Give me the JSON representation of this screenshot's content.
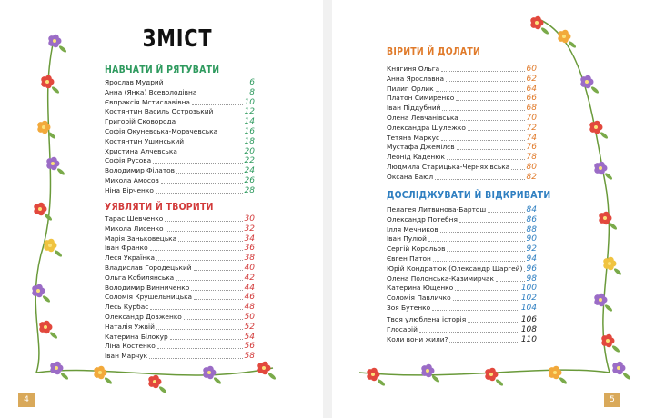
{
  "title": "ЗМІСТ",
  "sections": [
    {
      "heading": "НАВЧАТИ Й РЯТУВАТИ",
      "entries": [
        {
          "name": "Ярослав Мудрий",
          "page": 6
        },
        {
          "name": "Анна (Янка) Всеволодівна",
          "page": 8
        },
        {
          "name": "Євпраксія Мстиславівна",
          "page": 10
        },
        {
          "name": "Костянтин Василь Острозький",
          "page": 12
        },
        {
          "name": "Григорій Сковорода",
          "page": 14
        },
        {
          "name": "Софія Окуневська-Морачевська",
          "page": 16
        },
        {
          "name": "Костянтин Ушинський",
          "page": 18
        },
        {
          "name": "Христина Алчевська",
          "page": 20
        },
        {
          "name": "Софія Русова",
          "page": 22
        },
        {
          "name": "Володимир Філатов",
          "page": 24
        },
        {
          "name": "Микола Амосов",
          "page": 26
        },
        {
          "name": "Ніна Вірченко",
          "page": 28
        }
      ]
    },
    {
      "heading": "УЯВЛЯТИ Й ТВОРИТИ",
      "entries": [
        {
          "name": "Тарас Шевченко",
          "page": 30
        },
        {
          "name": "Микола Лисенко",
          "page": 32
        },
        {
          "name": "Марія Заньковецька",
          "page": 34
        },
        {
          "name": "Іван Франко",
          "page": 36
        },
        {
          "name": "Леся Українка",
          "page": 38
        },
        {
          "name": "Владислав Городецький",
          "page": 40
        },
        {
          "name": "Ольга Кобилянська",
          "page": 42
        },
        {
          "name": "Володимир Винниченко",
          "page": 44
        },
        {
          "name": "Соломія Крушельницька",
          "page": 46
        },
        {
          "name": "Лесь Курбас",
          "page": 48
        },
        {
          "name": "Олександр Довженко",
          "page": 50
        },
        {
          "name": "Наталія Ужвій",
          "page": 52
        },
        {
          "name": "Катерина Білокур",
          "page": 54
        },
        {
          "name": "Ліна Костенко",
          "page": 56
        },
        {
          "name": "Іван Марчук",
          "page": 58
        }
      ]
    },
    {
      "heading": "ВІРИТИ Й ДОЛАТИ",
      "entries": [
        {
          "name": "Княгиня Ольга",
          "page": 60
        },
        {
          "name": "Анна Ярославна",
          "page": 62
        },
        {
          "name": "Пилип Орлик",
          "page": 64
        },
        {
          "name": "Платон Симиренко",
          "page": 66
        },
        {
          "name": "Іван Піддубний",
          "page": 68
        },
        {
          "name": "Олена Левчанівська",
          "page": 70
        },
        {
          "name": "Олександра Шулежко",
          "page": 72
        },
        {
          "name": "Тетяна Маркус",
          "page": 74
        },
        {
          "name": "Мустафа Джемілєв",
          "page": 76
        },
        {
          "name": "Леонід Каденюк",
          "page": 78
        },
        {
          "name": "Людмила Старицька-Черняхівська",
          "page": 80
        },
        {
          "name": "Оксана Баюл",
          "page": 82
        }
      ]
    },
    {
      "heading": "ДОСЛІДЖУВАТИ Й ВІДКРИВАТИ",
      "entries": [
        {
          "name": "Пелагея Литвинова-Бартош",
          "page": 84
        },
        {
          "name": "Олександр Потебня",
          "page": 86
        },
        {
          "name": "Ілля Мечников",
          "page": 88
        },
        {
          "name": "Іван Пулюй",
          "page": 90
        },
        {
          "name": "Сергій Корольов",
          "page": 92
        },
        {
          "name": "Євген Патон",
          "page": 94
        },
        {
          "name": "Юрій Кондратюк (Олександр Шаргей)",
          "page": 96
        },
        {
          "name": "Олена Полонська-Казимирчак",
          "page": 98
        },
        {
          "name": "Катерина Ющенко",
          "page": 100
        },
        {
          "name": "Соломія Павличко",
          "page": 102
        },
        {
          "name": "Зоя Бутенко",
          "page": 104
        }
      ]
    }
  ],
  "extras": [
    {
      "name": "Твоя улюблена історія",
      "page": 106
    },
    {
      "name": "Глосарій",
      "page": 108
    },
    {
      "name": "Коли вони жили?",
      "page": 110
    }
  ],
  "page_numbers": {
    "left": 4,
    "right": 5
  }
}
